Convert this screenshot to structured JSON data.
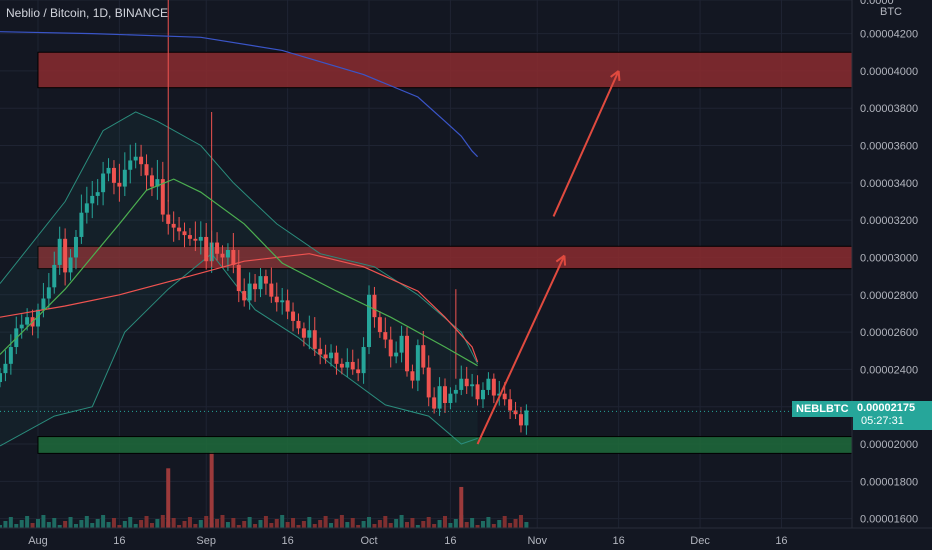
{
  "header": {
    "title": "Neblio / Bitcoin, 1D, BINANCE",
    "unit": "BTC"
  },
  "price_marker": {
    "symbol": "NEBLBTC",
    "price": "0.00002175",
    "countdown": "05:27:31"
  },
  "colors": {
    "background": "#131722",
    "up": "#26a69a",
    "down": "#ef5350",
    "resistance_zone": "#8b2b2f",
    "support_zone": "#1f6b3b",
    "ma_long": "#3a55c8",
    "ma_mid": "#ef5350",
    "bb_basis": "#4caf50",
    "bb_band": "#2a8c7c",
    "arrow": "#e04a3f",
    "grid": "#1f2433",
    "axis_text": "#b2b5be"
  },
  "chart_data": {
    "type": "candlestick",
    "title": "Neblio / Bitcoin, 1D, BINANCE",
    "ylabel": "BTC",
    "ylim": [
      1.55e-05,
      4.38e-05
    ],
    "y_ticks": [
      "0.0000",
      "0.00004200",
      "0.00004000",
      "0.00003800",
      "0.00003600",
      "0.00003400",
      "0.00003200",
      "0.00003000",
      "0.00002800",
      "0.00002600",
      "0.00002400",
      "0.00002200",
      "0.00002000",
      "0.00001800",
      "0.00001600"
    ],
    "y_tick_values": [
      4.38e-05,
      4.2e-05,
      4e-05,
      3.8e-05,
      3.6e-05,
      3.4e-05,
      3.2e-05,
      3e-05,
      2.8e-05,
      2.6e-05,
      2.4e-05,
      2.2e-05,
      2e-05,
      1.8e-05,
      1.6e-05
    ],
    "x_tick_labels": [
      "Aug",
      "16",
      "Sep",
      "16",
      "Oct",
      "16",
      "Nov",
      "16",
      "Dec",
      "16"
    ],
    "x_tick_days": [
      0,
      15,
      31,
      46,
      61,
      76,
      92,
      107,
      122,
      137
    ],
    "first_day": -7,
    "last_day": 150,
    "closes": [
      2.38e-05,
      2.43e-05,
      2.52e-05,
      2.62e-05,
      2.64e-05,
      2.68e-05,
      2.63e-05,
      2.72e-05,
      2.78e-05,
      2.84e-05,
      2.96e-05,
      3.1e-05,
      2.92e-05,
      3e-05,
      3.11e-05,
      3.24e-05,
      3.29e-05,
      3.33e-05,
      3.35e-05,
      3.45e-05,
      3.48e-05,
      3.4e-05,
      3.38e-05,
      3.47e-05,
      3.52e-05,
      3.54e-05,
      3.5e-05,
      3.44e-05,
      3.38e-05,
      3.42e-05,
      3.23e-05,
      3.18e-05,
      3.16e-05,
      3.14e-05,
      3.12e-05,
      3.1e-05,
      3.09e-05,
      3.11e-05,
      2.98e-05,
      3.08e-05,
      3.02e-05,
      3e-05,
      3.04e-05,
      2.96e-05,
      2.82e-05,
      2.77e-05,
      2.86e-05,
      2.83e-05,
      2.9e-05,
      2.86e-05,
      2.79e-05,
      2.76e-05,
      2.77e-05,
      2.71e-05,
      2.66e-05,
      2.62e-05,
      2.57e-05,
      2.61e-05,
      2.51e-05,
      2.48e-05,
      2.46e-05,
      2.49e-05,
      2.43e-05,
      2.41e-05,
      2.44e-05,
      2.4e-05,
      2.38e-05,
      2.52e-05,
      2.8e-05,
      2.68e-05,
      2.6e-05,
      2.56e-05,
      2.47e-05,
      2.49e-05,
      2.58e-05,
      2.39e-05,
      2.34e-05,
      2.53e-05,
      2.41e-05,
      2.25e-05,
      2.19e-05,
      2.31e-05,
      2.22e-05,
      2.27e-05,
      2.29e-05,
      2.35e-05,
      2.31e-05,
      2.32e-05,
      2.24e-05,
      2.29e-05,
      2.35e-05,
      2.26e-05,
      2.27e-05,
      2.24e-05,
      2.18e-05,
      2.16e-05,
      2.1e-05,
      2.18e-05
    ],
    "ma_long_points": [
      [
        -7,
        4.21e-05
      ],
      [
        10,
        4.2e-05
      ],
      [
        30,
        4.18e-05
      ],
      [
        45,
        4.11e-05
      ],
      [
        60,
        3.98e-05
      ],
      [
        70,
        3.86e-05
      ],
      [
        75,
        3.73e-05
      ],
      [
        78,
        3.65e-05
      ],
      [
        80,
        3.57e-05
      ],
      [
        81,
        3.54e-05
      ]
    ],
    "ma_mid_points": [
      [
        -7,
        2.68e-05
      ],
      [
        5,
        2.74e-05
      ],
      [
        15,
        2.8e-05
      ],
      [
        28,
        2.9e-05
      ],
      [
        38,
        2.98e-05
      ],
      [
        50,
        3.02e-05
      ],
      [
        60,
        2.95e-05
      ],
      [
        70,
        2.82e-05
      ],
      [
        75,
        2.68e-05
      ],
      [
        80,
        2.52e-05
      ],
      [
        81,
        2.44e-05
      ]
    ],
    "bb_basis_points": [
      [
        -7,
        2.48e-05
      ],
      [
        5,
        2.83e-05
      ],
      [
        15,
        3.18e-05
      ],
      [
        20,
        3.36e-05
      ],
      [
        25,
        3.42e-05
      ],
      [
        30,
        3.35e-05
      ],
      [
        38,
        3.18e-05
      ],
      [
        45,
        2.97e-05
      ],
      [
        55,
        2.82e-05
      ],
      [
        65,
        2.68e-05
      ],
      [
        75,
        2.52e-05
      ],
      [
        81,
        2.42e-05
      ]
    ],
    "bb_upper_points": [
      [
        -7,
        2.86e-05
      ],
      [
        5,
        3.3e-05
      ],
      [
        12,
        3.68e-05
      ],
      [
        18,
        3.78e-05
      ],
      [
        22,
        3.73e-05
      ],
      [
        30,
        3.6e-05
      ],
      [
        36,
        3.4e-05
      ],
      [
        44,
        3.18e-05
      ],
      [
        52,
        3.02e-05
      ],
      [
        62,
        2.95e-05
      ],
      [
        70,
        2.8e-05
      ],
      [
        78,
        2.6e-05
      ],
      [
        81,
        2.43e-05
      ]
    ],
    "bb_lower_points": [
      [
        -7,
        1.99e-05
      ],
      [
        3,
        2.15e-05
      ],
      [
        10,
        2.2e-05
      ],
      [
        16,
        2.6e-05
      ],
      [
        24,
        2.83e-05
      ],
      [
        32,
        3.02e-05
      ],
      [
        40,
        2.72e-05
      ],
      [
        48,
        2.57e-05
      ],
      [
        56,
        2.38e-05
      ],
      [
        64,
        2.21e-05
      ],
      [
        72,
        2.15e-05
      ],
      [
        78,
        2e-05
      ],
      [
        81,
        2.03e-05
      ]
    ],
    "zones": [
      {
        "role": "resistance",
        "from_day": 0,
        "y_low": 3.91e-05,
        "y_high": 4.1e-05
      },
      {
        "role": "resistance",
        "from_day": 0,
        "y_low": 2.94e-05,
        "y_high": 3.06e-05
      },
      {
        "role": "support",
        "from_day": 0,
        "y_low": 1.95e-05,
        "y_high": 2.04e-05
      }
    ],
    "arrow_path": [
      [
        81,
        2e-05
      ],
      [
        97,
        3.01e-05
      ],
      [
        95,
        3.22e-05
      ],
      [
        107,
        4e-05
      ]
    ],
    "volume_spikes": [
      {
        "day": 24,
        "level": 1.87e-05
      },
      {
        "day": 32,
        "level": 1.96e-05
      },
      {
        "day": 78,
        "level": 1.77e-05
      }
    ],
    "current_price": 2.175e-05
  }
}
